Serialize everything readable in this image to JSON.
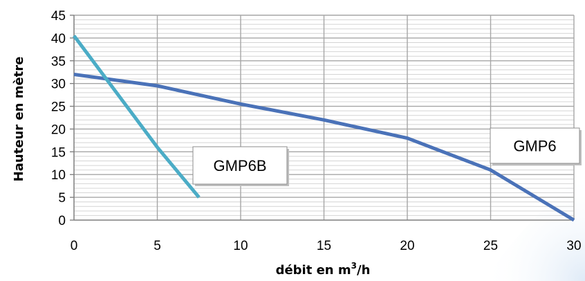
{
  "chart_data": {
    "type": "line",
    "title": "",
    "xlabel_prefix": "débit en m",
    "xlabel_sup": "3",
    "xlabel_suffix": "/h",
    "ylabel": "Hauteur en mètre",
    "xlim": [
      0,
      30
    ],
    "ylim": [
      0,
      45
    ],
    "x_ticks": [
      "0",
      "5",
      "10",
      "15",
      "20",
      "25",
      "30"
    ],
    "y_ticks": [
      "0",
      "5",
      "10",
      "15",
      "20",
      "25",
      "30",
      "35",
      "40",
      "45"
    ],
    "grid": true,
    "legend": "none",
    "series": [
      {
        "name": "GMP6",
        "color": "#4a72b8",
        "points": [
          [
            0,
            32
          ],
          [
            5,
            29.5
          ],
          [
            10,
            25.5
          ],
          [
            15,
            22
          ],
          [
            20,
            18
          ],
          [
            25,
            11
          ],
          [
            30,
            0
          ]
        ]
      },
      {
        "name": "GMP6B",
        "color": "#4bacc6",
        "points": [
          [
            0,
            40.5
          ],
          [
            5,
            16
          ],
          [
            7.5,
            5
          ]
        ]
      }
    ],
    "annotations": [
      {
        "text": "GMP6B",
        "series": "GMP6B"
      },
      {
        "text": "GMP6",
        "series": "GMP6"
      }
    ]
  }
}
